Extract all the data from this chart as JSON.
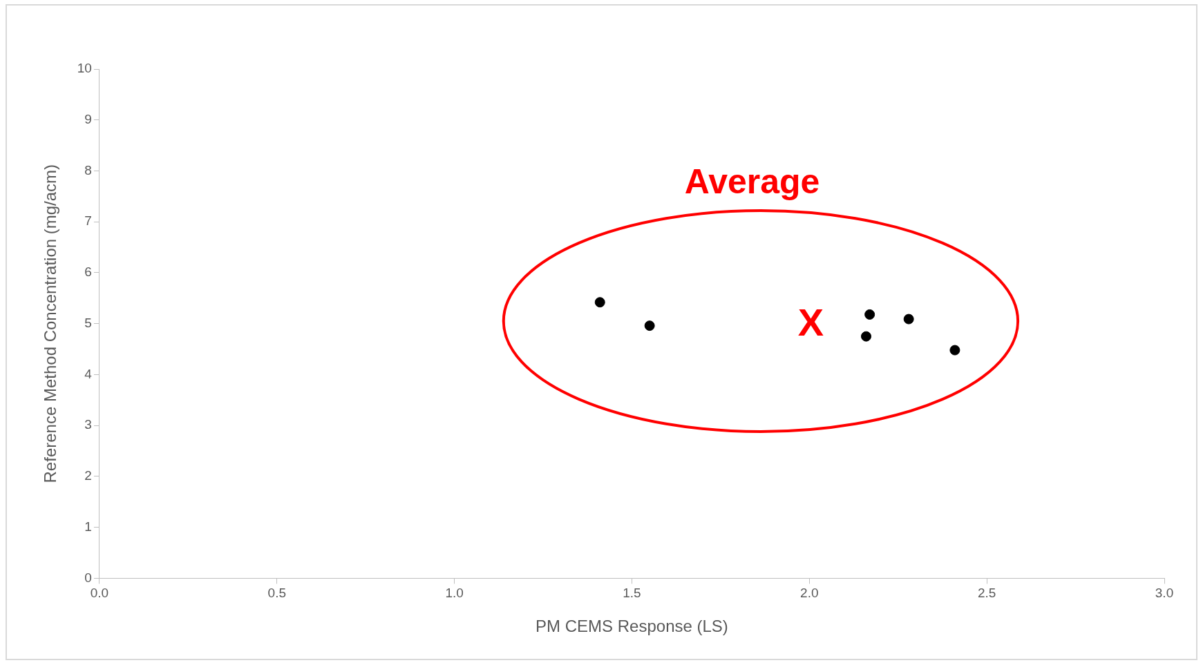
{
  "chart_data": {
    "type": "scatter",
    "xlabel": "PM CEMS Response (LS)",
    "ylabel": "Reference Method Concentration (mg/acm)",
    "x": [
      1.41,
      1.55,
      2.17,
      2.16,
      2.28,
      2.41
    ],
    "values": [
      5.42,
      4.96,
      5.18,
      4.75,
      5.09,
      4.48
    ],
    "color": "#000000",
    "marker": "circle",
    "xlim": [
      0,
      3
    ],
    "xticks": [
      {
        "value": 0,
        "label": "0.0"
      },
      {
        "value": 0.5,
        "label": "0.5"
      },
      {
        "value": 1,
        "label": "1.0"
      },
      {
        "value": 1.5,
        "label": "1.5"
      },
      {
        "value": 2,
        "label": "2.0"
      },
      {
        "value": 2.5,
        "label": "2.5"
      },
      {
        "value": 3,
        "label": "3.0"
      }
    ],
    "ylim": [
      0,
      10
    ],
    "yticks": [
      0,
      1,
      2,
      3,
      4,
      5,
      6,
      7,
      8,
      9,
      10
    ],
    "grid": false,
    "legend": false,
    "annotations": [
      "Average",
      "X"
    ]
  }
}
